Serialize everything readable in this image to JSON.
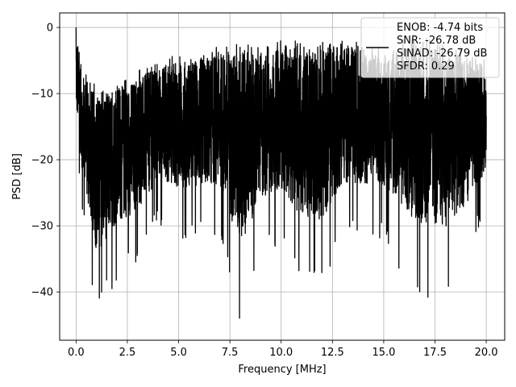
{
  "chart_data": {
    "type": "line",
    "title": "",
    "xlabel": "Frequency [MHz]",
    "ylabel": "PSD [dB]",
    "xlim": [
      -0.8,
      20.9
    ],
    "ylim": [
      -47.3,
      2.2
    ],
    "xticks": [
      0.0,
      2.5,
      5.0,
      7.5,
      10.0,
      12.5,
      15.0,
      17.5,
      20.0
    ],
    "xtick_labels": [
      "0.0",
      "2.5",
      "5.0",
      "7.5",
      "10.0",
      "12.5",
      "15.0",
      "17.5",
      "20.0"
    ],
    "yticks": [
      0,
      -10,
      -20,
      -30,
      -40
    ],
    "ytick_labels": [
      "0",
      "−10",
      "−20",
      "−30",
      "−40"
    ],
    "grid": true,
    "legend": {
      "placement": "top-right",
      "entries": [
        "ENOB: -4.74 bits",
        "SNR: -26.78 dB",
        "SINAD: -26.79 dB",
        "SFDR: 0.29"
      ]
    },
    "series": [
      {
        "color": "#000000",
        "x_range": [
          0,
          20
        ],
        "description": "dense noise-like PSD trace; values approximated from the visible envelope",
        "envelope": {
          "x": [
            0.0,
            0.3,
            1.0,
            2.0,
            3.0,
            4.0,
            5.0,
            6.0,
            7.0,
            8.0,
            9.0,
            10.0,
            11.0,
            12.0,
            13.0,
            14.0,
            15.0,
            16.0,
            17.0,
            18.0,
            19.0,
            20.0
          ],
          "upper": [
            0.0,
            -6.0,
            -9.0,
            -8.0,
            -6.5,
            -5.0,
            -4.0,
            -3.5,
            -2.5,
            -2.0,
            -3.0,
            -2.0,
            -2.0,
            -1.5,
            -1.5,
            -2.0,
            -3.0,
            -1.5,
            -1.5,
            -2.5,
            -3.0,
            -5.0
          ],
          "lower": [
            -17.0,
            -28.0,
            -44.0,
            -38.0,
            -36.0,
            -30.0,
            -32.0,
            -32.0,
            -32.0,
            -45.0,
            -35.0,
            -33.0,
            -39.0,
            -40.0,
            -32.0,
            -32.0,
            -32.0,
            -38.0,
            -41.0,
            -41.0,
            -36.0,
            -28.0
          ]
        }
      }
    ]
  }
}
